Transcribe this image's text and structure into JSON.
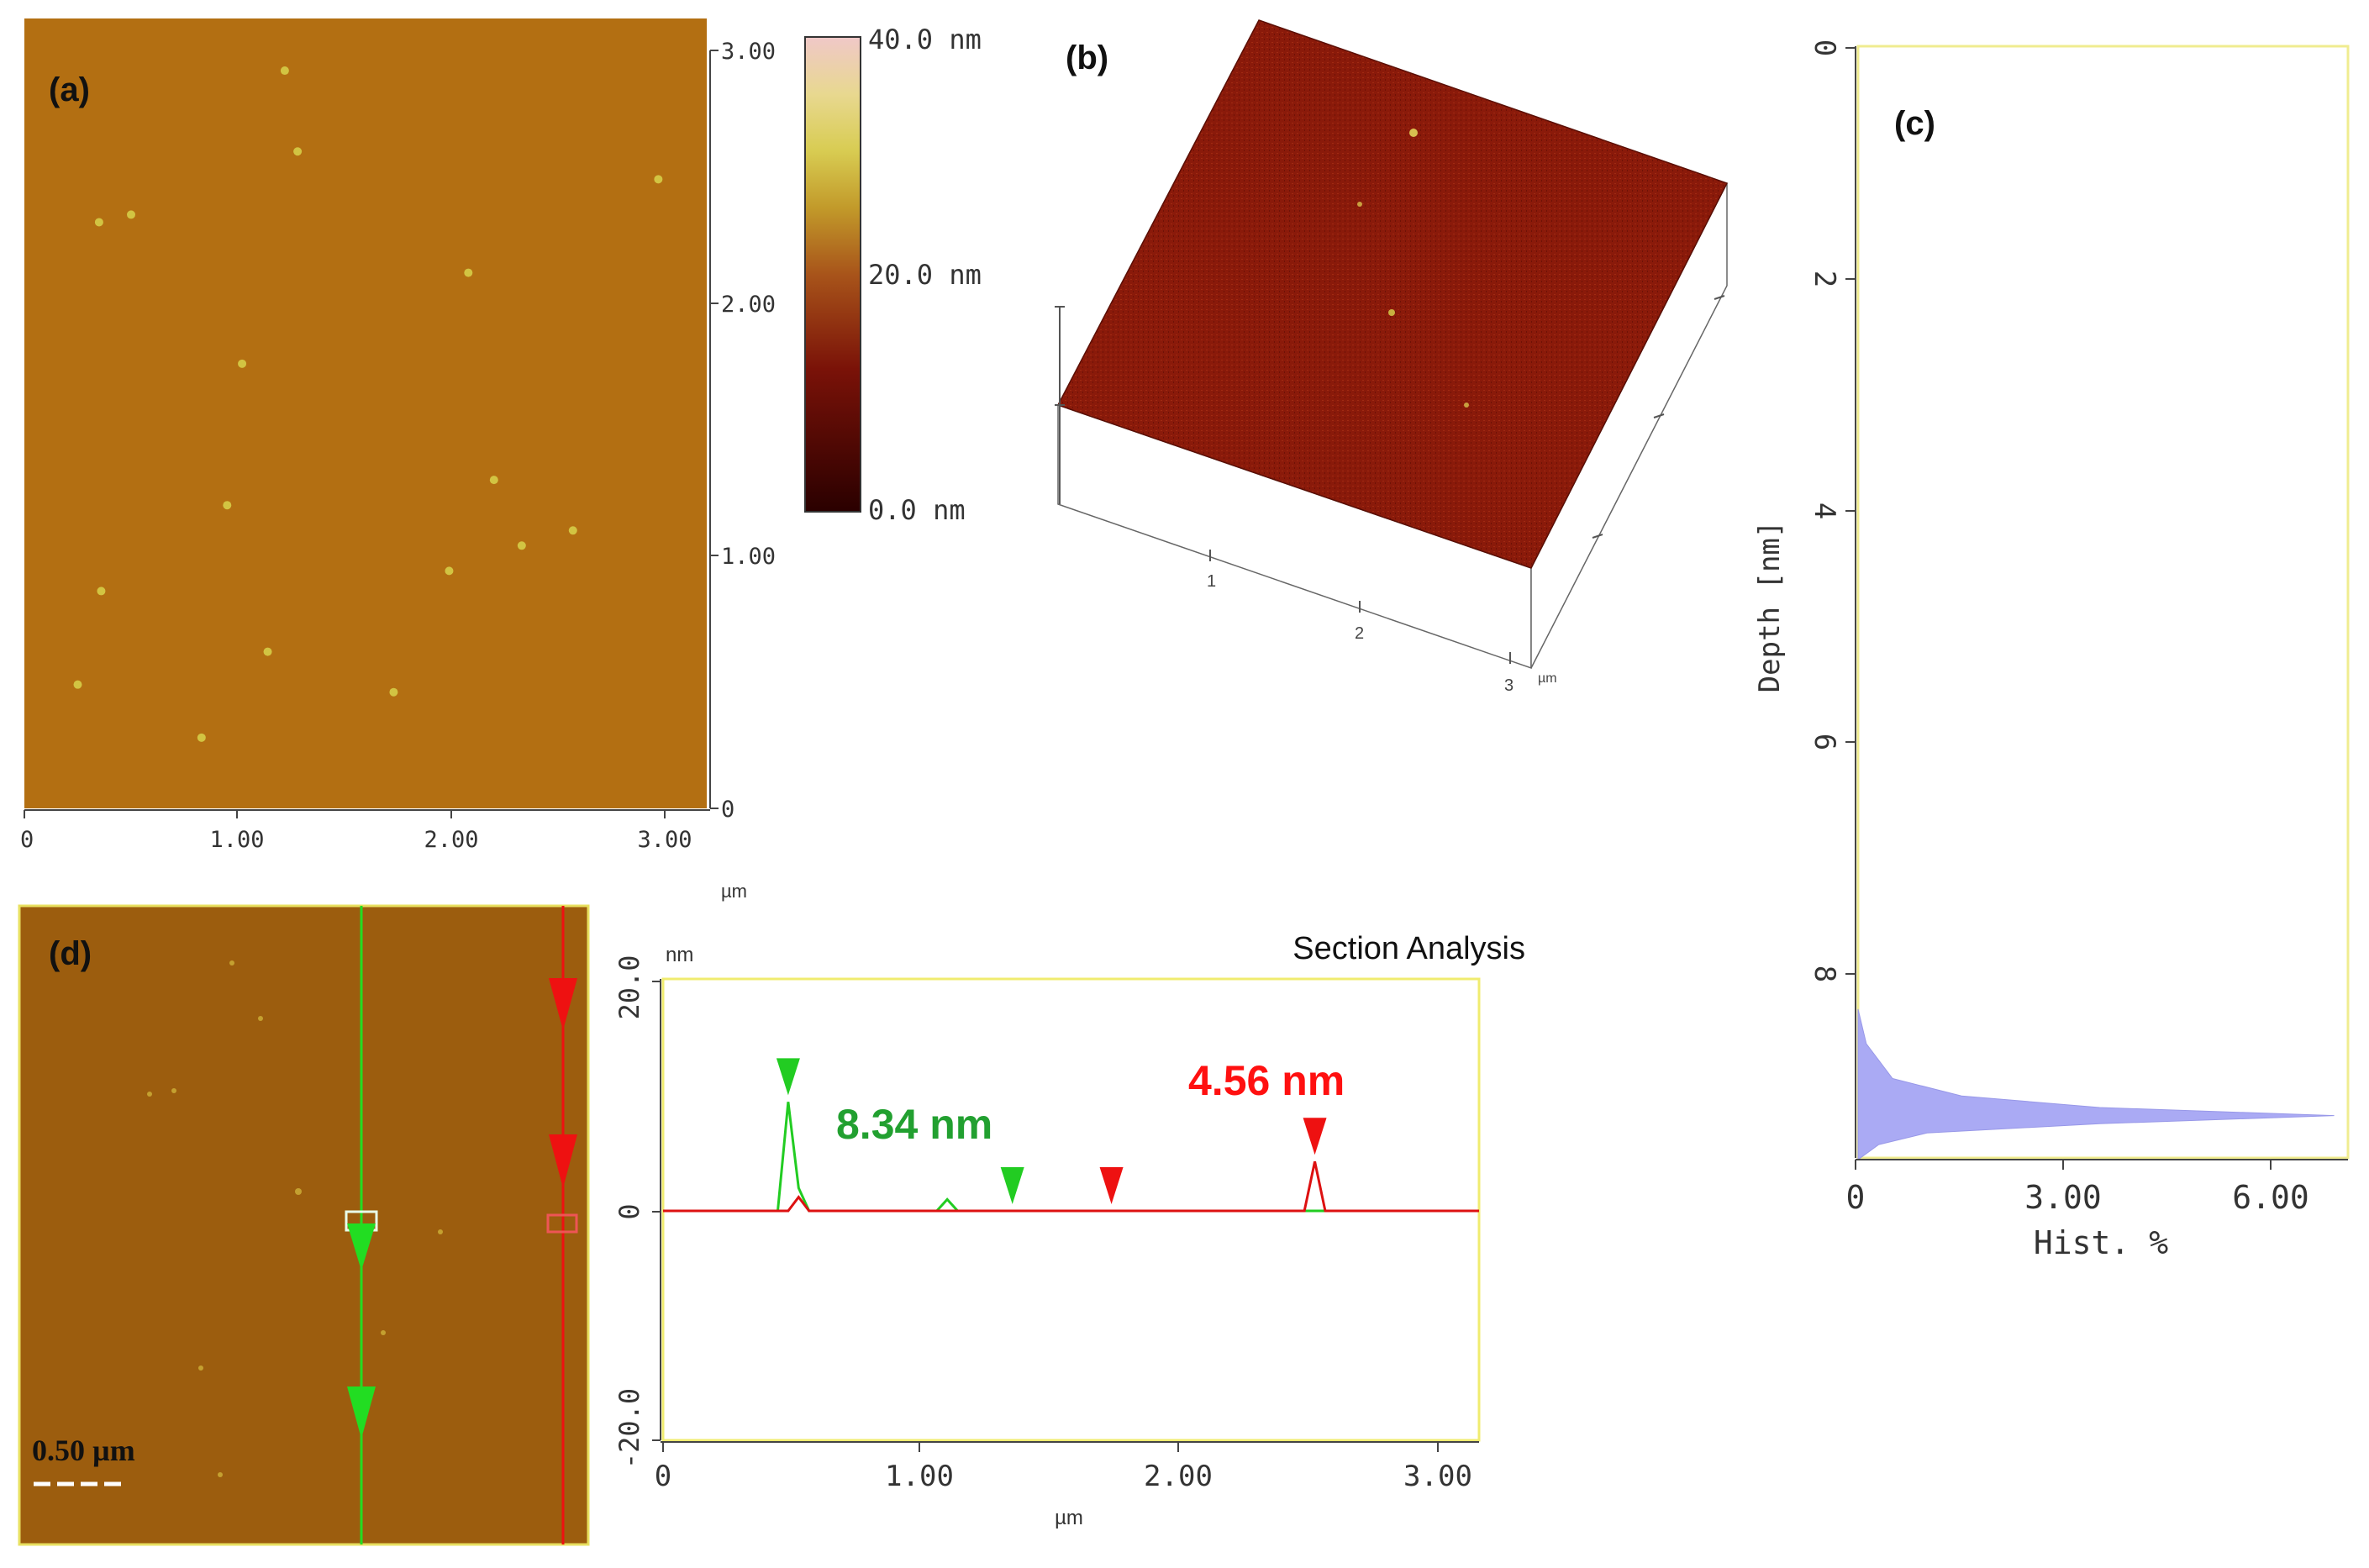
{
  "panels": {
    "a": {
      "label": "(a)",
      "x_ticks": [
        "0",
        "1.00",
        "2.00",
        "3.00"
      ],
      "y_ticks": [
        "0",
        "1.00",
        "2.00",
        "3.00"
      ],
      "x_unit": "µm",
      "range_um": [
        0,
        3.2
      ],
      "colorbar": {
        "max_label": "40.0 nm",
        "mid_label": "20.0 nm",
        "min_label": "0.0 nm",
        "colors": [
          "#2a0000",
          "#7a1208",
          "#a8541a",
          "#c29a2a",
          "#d8cc52",
          "#e8d890",
          "#f0c8c8"
        ]
      },
      "surface_color": "#b36f12",
      "particles": [
        {
          "x": 0.35,
          "y": 2.32
        },
        {
          "x": 0.5,
          "y": 2.35
        },
        {
          "x": 1.02,
          "y": 1.76
        },
        {
          "x": 1.28,
          "y": 2.6
        },
        {
          "x": 2.33,
          "y": 1.04
        },
        {
          "x": 1.73,
          "y": 0.46
        },
        {
          "x": 0.36,
          "y": 0.86
        },
        {
          "x": 1.14,
          "y": 0.62
        },
        {
          "x": 0.25,
          "y": 0.49
        },
        {
          "x": 2.97,
          "y": 2.49
        },
        {
          "x": 0.95,
          "y": 1.2
        },
        {
          "x": 1.99,
          "y": 0.94
        },
        {
          "x": 2.2,
          "y": 1.3
        },
        {
          "x": 2.57,
          "y": 1.1
        },
        {
          "x": 0.83,
          "y": 0.28
        },
        {
          "x": 1.22,
          "y": 2.92
        },
        {
          "x": 2.08,
          "y": 2.12
        }
      ]
    },
    "b": {
      "label": "(b)",
      "axis_ticks": [
        "1",
        "2",
        "3"
      ],
      "unit": "µm",
      "surface_color": "#8a1a0a"
    },
    "c": {
      "label": "(c)",
      "y_label": "Depth [nm]",
      "x_label": "Hist. %",
      "y_ticks": [
        "0",
        "2",
        "4",
        "6",
        "8"
      ],
      "x_ticks": [
        "0",
        "3.00",
        "6.00"
      ],
      "depth_range": [
        0,
        9.6
      ],
      "hist_range": [
        0,
        7.1
      ],
      "fill_color": "#aaaaf4",
      "histogram": [
        {
          "depth": 8.3,
          "pct": 0.0
        },
        {
          "depth": 8.6,
          "pct": 0.12
        },
        {
          "depth": 8.9,
          "pct": 0.5
        },
        {
          "depth": 9.05,
          "pct": 1.5
        },
        {
          "depth": 9.15,
          "pct": 3.5
        },
        {
          "depth": 9.22,
          "pct": 6.9
        },
        {
          "depth": 9.29,
          "pct": 3.5
        },
        {
          "depth": 9.37,
          "pct": 1.0
        },
        {
          "depth": 9.47,
          "pct": 0.3
        },
        {
          "depth": 9.6,
          "pct": 0.0
        }
      ]
    },
    "d": {
      "label": "(d)",
      "scale_bar": "0.50 µm",
      "surface_color": "#9c5d0e"
    }
  },
  "chart_data": [
    {
      "type": "heatmap",
      "panel": "a",
      "xlabel": "µm",
      "x_ticks": [
        0,
        1.0,
        2.0,
        3.0
      ],
      "y_ticks": [
        0,
        1.0,
        2.0,
        3.0
      ],
      "colorbar_range_nm": [
        0,
        40
      ]
    },
    {
      "type": "area",
      "panel": "c",
      "xlabel": "Hist. %",
      "ylabel": "Depth [nm]",
      "xlim": [
        0,
        7.1
      ],
      "ylim": [
        0,
        9.6
      ],
      "peak_depth_nm": 9.22,
      "peak_pct": 6.9
    },
    {
      "type": "line",
      "panel": "d",
      "title": "Section Analysis",
      "xlabel": "µm",
      "ylabel": "nm",
      "xlim": [
        0,
        3.13
      ],
      "ylim": [
        -20,
        20
      ],
      "x_ticks": [
        "0",
        "1.00",
        "2.00",
        "3.00"
      ],
      "y_ticks": [
        "20.0",
        "0",
        "-20.0"
      ],
      "series": [
        {
          "color": "#22cc22",
          "x": [
            0,
            0.44,
            0.48,
            0.52,
            0.56,
            1.05,
            1.09,
            1.13,
            3.13
          ],
          "y": [
            0,
            0,
            9.5,
            2.0,
            0,
            0,
            1.0,
            0,
            0
          ]
        },
        {
          "color": "#dd1111",
          "x": [
            0,
            0.48,
            0.52,
            0.56,
            2.46,
            2.5,
            2.54,
            3.13
          ],
          "y": [
            0,
            0,
            1.2,
            0,
            0,
            4.3,
            0,
            0
          ]
        }
      ],
      "annotations": [
        {
          "text": "8.34 nm",
          "color": "#22a030"
        },
        {
          "text": "4.56 nm",
          "color": "#ff1010"
        }
      ],
      "cursors": [
        {
          "x": 0.48,
          "y": 9.5,
          "color": "#22cc22"
        },
        {
          "x": 1.34,
          "y": 0,
          "color": "#22cc22"
        },
        {
          "x": 1.72,
          "y": 0,
          "color": "#ee1111"
        },
        {
          "x": 2.5,
          "y": 4.3,
          "color": "#ee1111"
        }
      ]
    }
  ]
}
